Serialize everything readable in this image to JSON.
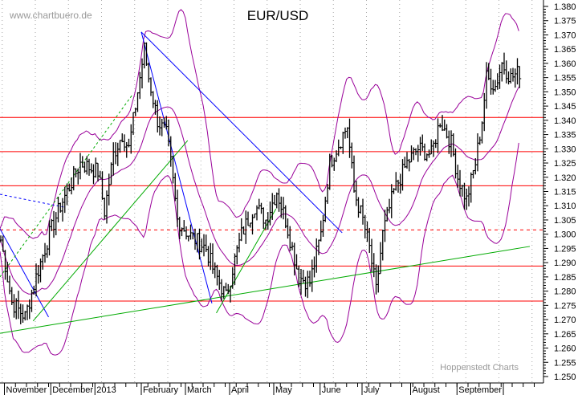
{
  "chart_data": {
    "type": "ohlc",
    "title": "EUR/USD",
    "watermark": "www.chartbuero.de",
    "credit": "Hoppenstedt Charts",
    "ylim": [
      1.248,
      1.382
    ],
    "y_ticks": [
      "1.380",
      "1.375",
      "1.370",
      "1.365",
      "1.360",
      "1.355",
      "1.350",
      "1.345",
      "1.340",
      "1.335",
      "1.330",
      "1.325",
      "1.320",
      "1.315",
      "1.310",
      "1.305",
      "1.300",
      "1.295",
      "1.290",
      "1.285",
      "1.280",
      "1.275",
      "1.270",
      "1.265",
      "1.260",
      "1.255",
      "1.250"
    ],
    "x_months": [
      {
        "label": "November",
        "day": 2
      },
      {
        "label": "December",
        "day": 23
      },
      {
        "label": "2013",
        "day": 43
      },
      {
        "label": "February",
        "day": 64
      },
      {
        "label": "March",
        "day": 84
      },
      {
        "label": "April",
        "day": 104
      },
      {
        "label": "May",
        "day": 124
      },
      {
        "label": "June",
        "day": 145
      },
      {
        "label": "July",
        "day": 164
      },
      {
        "label": "August",
        "day": 186
      },
      {
        "label": "September",
        "day": 207
      },
      {
        "label": "",
        "day": 228
      }
    ],
    "total_days": 246,
    "price_path": [
      [
        0,
        1.298
      ],
      [
        5,
        1.276
      ],
      [
        11,
        1.271
      ],
      [
        16,
        1.285
      ],
      [
        22,
        1.3
      ],
      [
        27,
        1.31
      ],
      [
        33,
        1.32
      ],
      [
        36,
        1.325
      ],
      [
        44,
        1.322
      ],
      [
        47,
        1.308
      ],
      [
        51,
        1.328
      ],
      [
        55,
        1.335
      ],
      [
        58,
        1.33
      ],
      [
        62,
        1.35
      ],
      [
        65,
        1.365
      ],
      [
        67,
        1.355
      ],
      [
        71,
        1.34
      ],
      [
        75,
        1.335
      ],
      [
        77,
        1.325
      ],
      [
        80,
        1.305
      ],
      [
        85,
        1.3
      ],
      [
        93,
        1.295
      ],
      [
        96,
        1.288
      ],
      [
        102,
        1.278
      ],
      [
        105,
        1.288
      ],
      [
        109,
        1.3
      ],
      [
        115,
        1.31
      ],
      [
        120,
        1.305
      ],
      [
        125,
        1.315
      ],
      [
        129,
        1.305
      ],
      [
        135,
        1.285
      ],
      [
        140,
        1.283
      ],
      [
        145,
        1.3
      ],
      [
        149,
        1.325
      ],
      [
        155,
        1.335
      ],
      [
        157,
        1.338
      ],
      [
        160,
        1.315
      ],
      [
        164,
        1.305
      ],
      [
        167,
        1.295
      ],
      [
        170,
        1.28
      ],
      [
        173,
        1.3
      ],
      [
        178,
        1.315
      ],
      [
        184,
        1.325
      ],
      [
        189,
        1.33
      ],
      [
        195,
        1.328
      ],
      [
        199,
        1.34
      ],
      [
        204,
        1.332
      ],
      [
        207,
        1.32
      ],
      [
        211,
        1.312
      ],
      [
        215,
        1.325
      ],
      [
        218,
        1.34
      ],
      [
        220,
        1.355
      ],
      [
        224,
        1.352
      ],
      [
        227,
        1.36
      ],
      [
        231,
        1.355
      ],
      [
        235,
        1.357
      ]
    ],
    "horizontal_lines": [
      {
        "price": 1.341,
        "style": "solid",
        "color": "#ff0000"
      },
      {
        "price": 1.329,
        "style": "solid",
        "color": "#ff0000"
      },
      {
        "price": 1.317,
        "style": "solid",
        "color": "#ff0000"
      },
      {
        "price": 1.3015,
        "style": "dashed",
        "color": "#ff0000"
      },
      {
        "price": 1.2888,
        "style": "solid",
        "color": "#ff0000"
      },
      {
        "price": 1.2765,
        "style": "solid",
        "color": "#ff0000"
      }
    ],
    "trend_lines": [
      {
        "from": [
          64,
          1.371
        ],
        "to": [
          155,
          1.3005
        ],
        "color": "#0000ff",
        "style": "solid"
      },
      {
        "from": [
          64,
          1.371
        ],
        "to": [
          96,
          1.2757
        ],
        "color": "#0000ff",
        "style": "solid"
      },
      {
        "from": [
          0,
          1.3019
        ],
        "to": [
          22,
          1.2709
        ],
        "color": "#0000ff",
        "style": "solid"
      },
      {
        "from": [
          0,
          1.314
        ],
        "to": [
          29,
          1.3095
        ],
        "color": "#0000ff",
        "style": "dashed"
      },
      {
        "from": [
          0,
          1.2652
        ],
        "to": [
          240,
          1.2957
        ],
        "color": "#00aa00",
        "style": "solid"
      },
      {
        "from": [
          15,
          1.2695
        ],
        "to": [
          85,
          1.3329
        ],
        "color": "#00aa00",
        "style": "solid"
      },
      {
        "from": [
          0,
          1.285
        ],
        "to": [
          60,
          1.349
        ],
        "color": "#00aa00",
        "style": "dashed"
      },
      {
        "from": [
          98,
          1.2723
        ],
        "to": [
          125,
          1.3089
        ],
        "color": "#00aa00",
        "style": "solid"
      }
    ],
    "bollinger": {
      "period": 20,
      "stddev": 2,
      "color": "#990099"
    },
    "grid": "vertical-dotted"
  }
}
